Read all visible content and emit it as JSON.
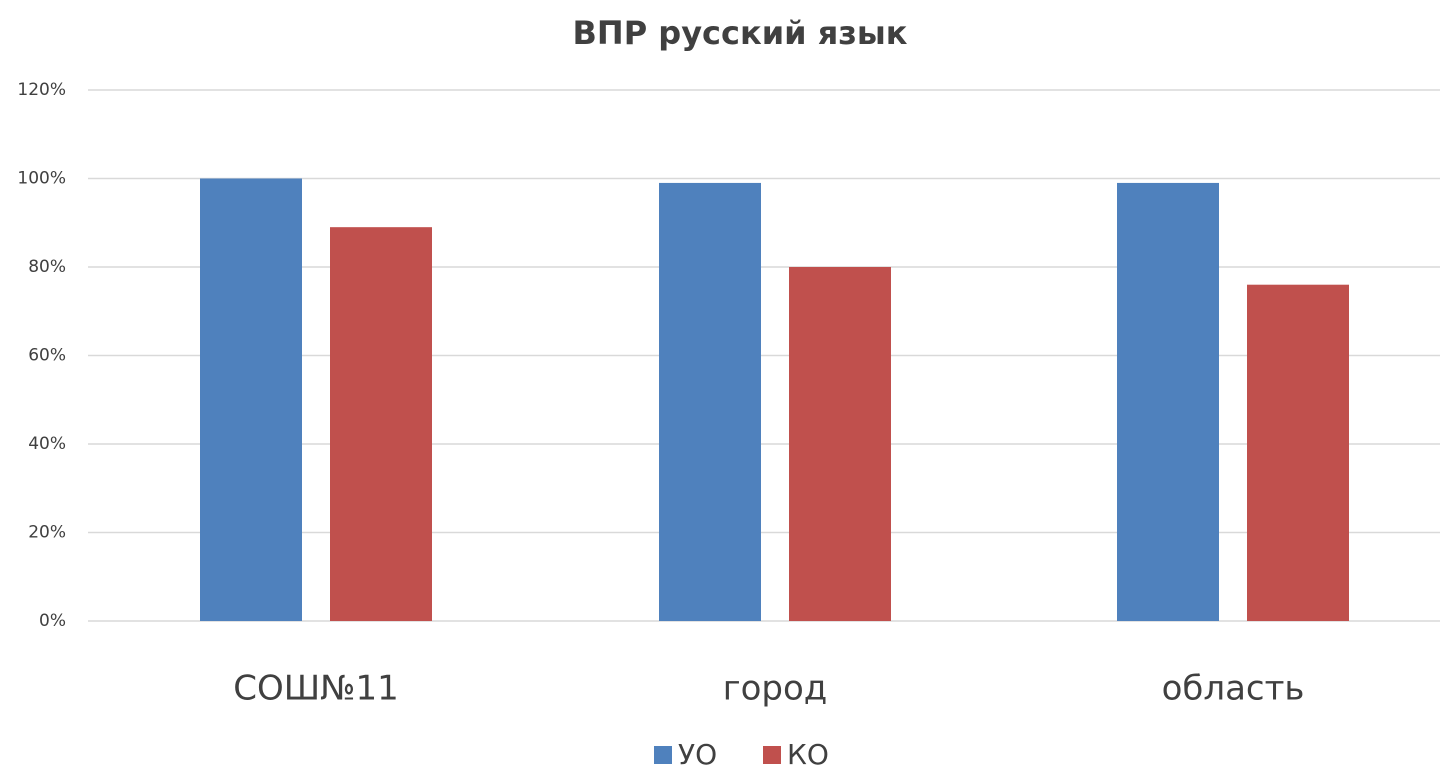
{
  "chart_data": {
    "type": "bar",
    "title": "ВПР русский язык",
    "categories": [
      "СОШ№11",
      "город",
      "область"
    ],
    "series": [
      {
        "name": "УО",
        "color": "#4f81bd",
        "values": [
          100,
          99,
          99
        ]
      },
      {
        "name": "КО",
        "color": "#c0504d",
        "values": [
          89,
          80,
          76
        ]
      }
    ],
    "ylim": [
      0,
      120
    ],
    "yticks": [
      {
        "value": 0,
        "label": "0%"
      },
      {
        "value": 20,
        "label": "20%"
      },
      {
        "value": 40,
        "label": "40%"
      },
      {
        "value": 60,
        "label": "60%"
      },
      {
        "value": 80,
        "label": "80%"
      },
      {
        "value": 100,
        "label": "100%"
      },
      {
        "value": 120,
        "label": "120%"
      }
    ],
    "grid": true,
    "legend": "bottom"
  }
}
